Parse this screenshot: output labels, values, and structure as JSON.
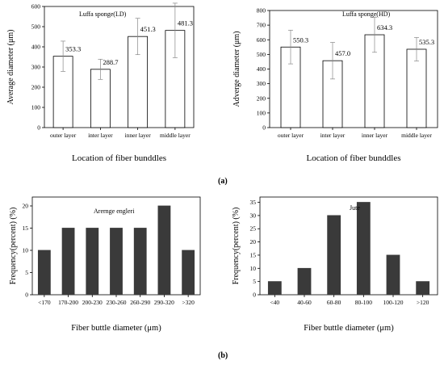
{
  "captions": {
    "a": "(a)",
    "b": "(b)"
  },
  "chart_data": [
    {
      "type": "bar",
      "title": "Luffa sponge(LD)",
      "xlabel": "Location of fiber bunddles",
      "ylabel": "Average diameter (μm)",
      "categories": [
        "outer layer",
        "inter layer",
        "inner layer",
        "middle layer"
      ],
      "values": [
        353.3,
        288.7,
        451.3,
        481.3
      ],
      "value_labels": [
        "353.3",
        "288.7",
        "451.3",
        "481.3"
      ],
      "error": [
        75,
        50,
        90,
        135
      ],
      "ylim": [
        0,
        600
      ],
      "yticks": [
        0,
        100,
        200,
        300,
        400,
        500,
        600
      ],
      "bar_style": "open",
      "grid": false
    },
    {
      "type": "bar",
      "title": "Luffa sponge(HD)",
      "xlabel": "Location of fiber bunddles",
      "ylabel": "Adverge diameter (μm)",
      "categories": [
        "outer layer",
        "inter layer",
        "inner layer",
        "middle layer"
      ],
      "values": [
        550.3,
        457.0,
        634.3,
        535.3
      ],
      "value_labels": [
        "550.3",
        "457.0",
        "634.3",
        "535.3"
      ],
      "error": [
        115,
        125,
        120,
        80
      ],
      "ylim": [
        0,
        800
      ],
      "yticks": [
        0,
        100,
        200,
        300,
        400,
        500,
        600,
        700,
        800
      ],
      "bar_style": "open",
      "grid": false
    },
    {
      "type": "bar",
      "title": "Arernge engleri",
      "xlabel": "Fiber buttle diameter (μm)",
      "ylabel": "Frequency(percent) (%)",
      "categories": [
        "<170",
        "170-200",
        "200-230",
        "230-260",
        "260-290",
        "290-320",
        ">320"
      ],
      "values": [
        10,
        15,
        15,
        15,
        15,
        20,
        10
      ],
      "ylim": [
        0,
        22
      ],
      "yticks": [
        0,
        5,
        10,
        15,
        20
      ],
      "bar_style": "filled",
      "bar_color": "#3a3a3a",
      "grid": false
    },
    {
      "type": "bar",
      "title": "Jute",
      "xlabel": "Fiber buttle diameter (μm)",
      "ylabel": "Frequency(percent) (%)",
      "categories": [
        "<40",
        "40-60",
        "60-80",
        "80-100",
        "100-120",
        ">120"
      ],
      "values": [
        5,
        10,
        30,
        35,
        15,
        5
      ],
      "ylim": [
        0,
        37
      ],
      "yticks": [
        0,
        5,
        10,
        15,
        20,
        25,
        30,
        35
      ],
      "bar_style": "filled",
      "bar_color": "#3a3a3a",
      "grid": false
    }
  ]
}
